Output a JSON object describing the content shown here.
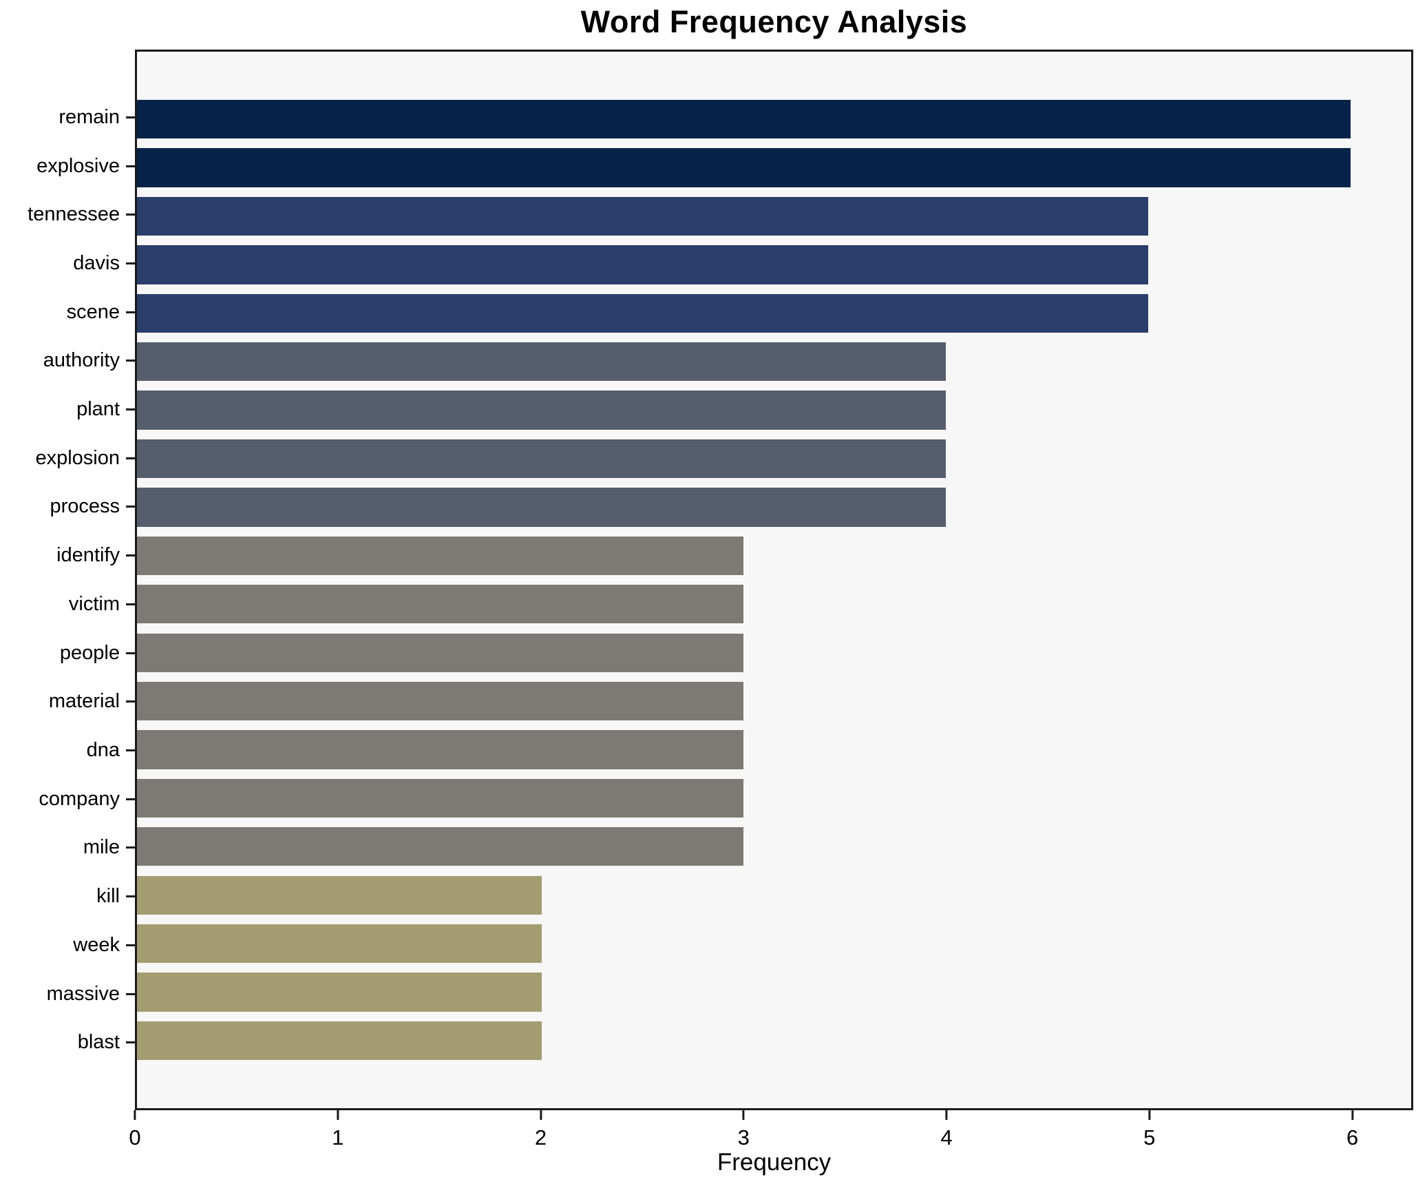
{
  "chart_data": {
    "type": "bar",
    "orientation": "horizontal",
    "title": "Word Frequency Analysis",
    "xlabel": "Frequency",
    "ylabel": "",
    "categories": [
      "remain",
      "explosive",
      "tennessee",
      "davis",
      "scene",
      "authority",
      "plant",
      "explosion",
      "process",
      "identify",
      "victim",
      "people",
      "material",
      "dna",
      "company",
      "mile",
      "kill",
      "week",
      "massive",
      "blast"
    ],
    "values": [
      6,
      6,
      5,
      5,
      5,
      4,
      4,
      4,
      4,
      3,
      3,
      3,
      3,
      3,
      3,
      3,
      2,
      2,
      2,
      2
    ],
    "bar_colors": [
      "#072349",
      "#072349",
      "#2b3e6b",
      "#2b3e6b",
      "#2b3e6b",
      "#565d6c",
      "#565d6c",
      "#565d6c",
      "#565d6c",
      "#7b7a75",
      "#7b7a75",
      "#7b7a75",
      "#7b7a75",
      "#7b7a75",
      "#7b7a75",
      "#7b7a75",
      "#a49c71",
      "#a49c71",
      "#a49c71",
      "#a49c71"
    ],
    "xlim": [
      0,
      6.3
    ],
    "xticks": [
      "0",
      "1",
      "2",
      "3",
      "4",
      "5",
      "6"
    ],
    "grid": false,
    "legend_position": "none",
    "plot_background": "#f7f7f7",
    "spine_color": "#1a1a1a",
    "text_color": "#000000"
  }
}
